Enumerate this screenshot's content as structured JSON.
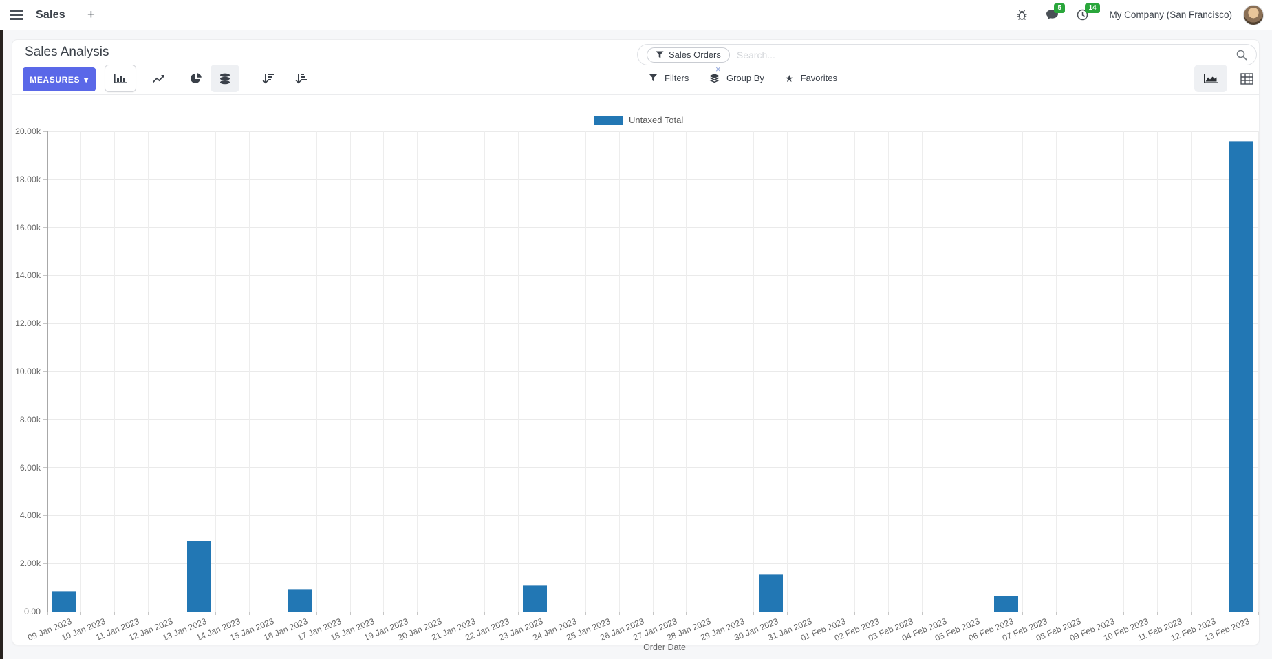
{
  "navbar": {
    "app_name": "Sales",
    "new_tab_label": "+",
    "messages_badge": "5",
    "activities_badge": "14",
    "company_name": "My Company (San Francisco)",
    "icons": [
      "menu-icon",
      "bug-icon",
      "chat-icon",
      "clock-icon",
      "user-avatar"
    ]
  },
  "control_panel": {
    "title": "Sales Analysis",
    "measures_button": "MEASURES",
    "measures_caret": "▾",
    "chart_type_icons": [
      "bar-chart-icon",
      "line-chart-icon",
      "pie-chart-icon",
      "stacked-icon",
      "sort-descending-icon",
      "sort-ascending-icon"
    ],
    "search": {
      "facet_label": "Sales Orders",
      "facet_remove": "×",
      "placeholder": "Search..."
    },
    "filters_label": "Filters",
    "group_by_label": "Group By",
    "favorites_label": "Favorites",
    "view_switcher_icons": [
      "area-chart-view-icon",
      "pivot-view-icon"
    ]
  },
  "colors": {
    "primary_button": "#5a68e8",
    "bar_series": "#2277b4",
    "badge_green": "#2aa63b",
    "facet_remove": "#92a7dc"
  },
  "chart_data": {
    "type": "bar",
    "title": "",
    "legend_position": "top",
    "grid": true,
    "xlabel": "Order Date",
    "ylabel": "",
    "ylim": [
      0,
      20000
    ],
    "y_tick_step": 2000,
    "y_tick_labels": [
      "0.00",
      "2.00k",
      "4.00k",
      "6.00k",
      "8.00k",
      "10.00k",
      "12.00k",
      "14.00k",
      "16.00k",
      "18.00k",
      "20.00k"
    ],
    "categories": [
      "09 Jan 2023",
      "10 Jan 2023",
      "11 Jan 2023",
      "12 Jan 2023",
      "13 Jan 2023",
      "14 Jan 2023",
      "15 Jan 2023",
      "16 Jan 2023",
      "17 Jan 2023",
      "18 Jan 2023",
      "19 Jan 2023",
      "20 Jan 2023",
      "21 Jan 2023",
      "22 Jan 2023",
      "23 Jan 2023",
      "24 Jan 2023",
      "25 Jan 2023",
      "26 Jan 2023",
      "27 Jan 2023",
      "28 Jan 2023",
      "29 Jan 2023",
      "30 Jan 2023",
      "31 Jan 2023",
      "01 Feb 2023",
      "02 Feb 2023",
      "03 Feb 2023",
      "04 Feb 2023",
      "05 Feb 2023",
      "06 Feb 2023",
      "07 Feb 2023",
      "08 Feb 2023",
      "09 Feb 2023",
      "10 Feb 2023",
      "11 Feb 2023",
      "12 Feb 2023",
      "13 Feb 2023"
    ],
    "series": [
      {
        "name": "Untaxed Total",
        "color": "#2277b4",
        "values": [
          850,
          0,
          0,
          0,
          2950,
          0,
          0,
          950,
          0,
          0,
          0,
          0,
          0,
          0,
          1100,
          0,
          0,
          0,
          0,
          0,
          0,
          1550,
          0,
          0,
          0,
          0,
          0,
          0,
          650,
          0,
          0,
          0,
          0,
          0,
          0,
          19600
        ]
      }
    ]
  }
}
